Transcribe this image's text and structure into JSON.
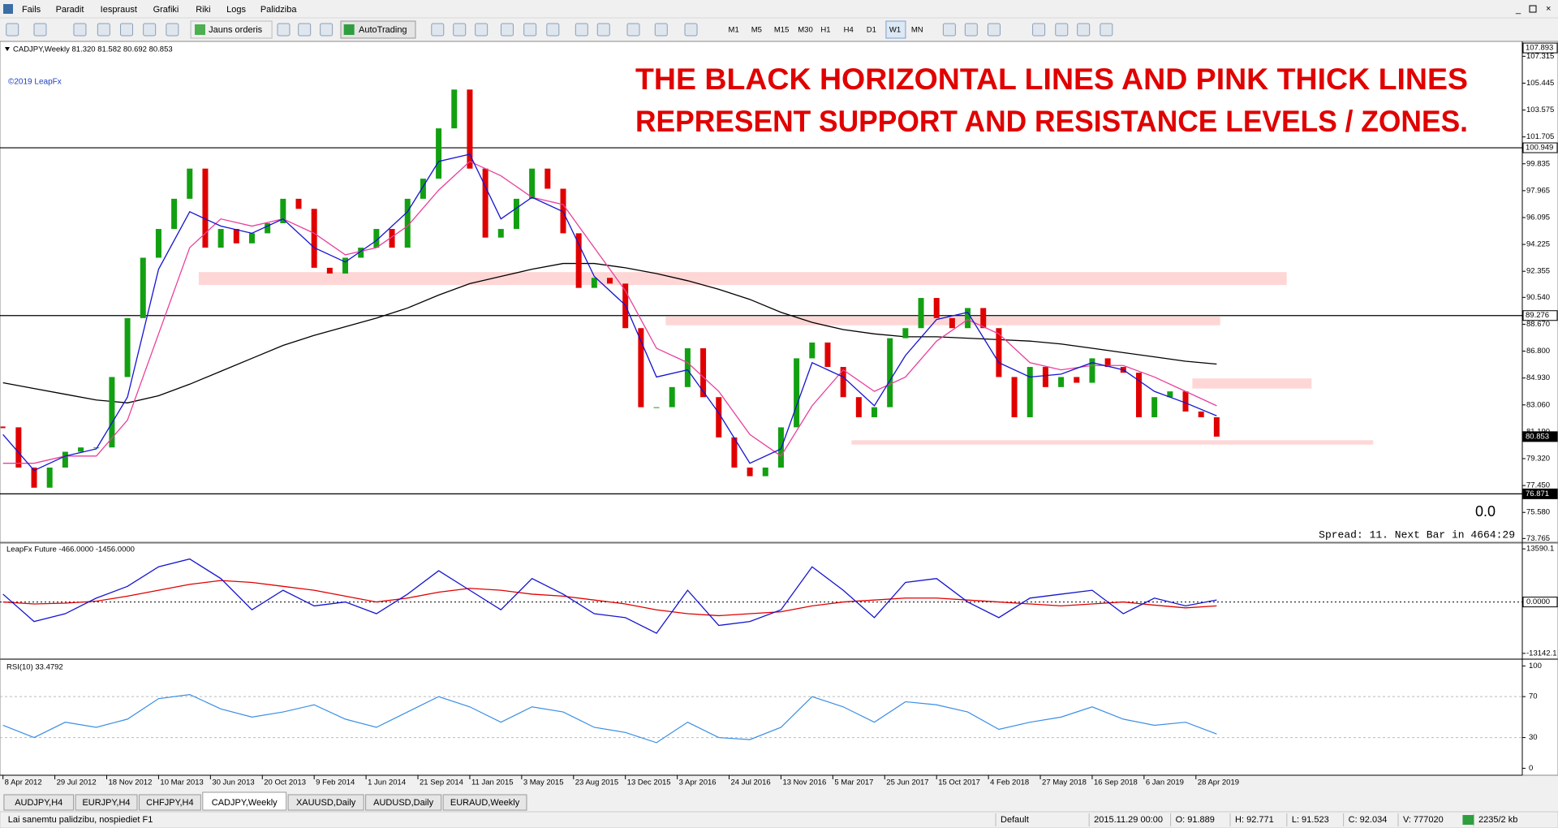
{
  "menu": [
    "Fails",
    "Paradit",
    "Iespraust",
    "Grafiki",
    "Riki",
    "Logs",
    "Palidziba"
  ],
  "toolbar": {
    "new_order": "Jauns orderis",
    "autotrading": "AutoTrading",
    "timeframes": [
      "M1",
      "M5",
      "M15",
      "M30",
      "H1",
      "H4",
      "D1",
      "W1",
      "MN"
    ]
  },
  "main_chart": {
    "header": "CADJPY,Weekly  81.320 81.582 80.692 80.853",
    "copyright": "©2019 LeapFx",
    "annotation": [
      "THE BLACK HORIZONTAL LINES AND PINK THICK LINES",
      "REPRESENT SUPPORT AND RESISTANCE LEVELS / ZONES."
    ],
    "ylim": [
      73.56,
      108.35
    ],
    "yticks": [
      107.315,
      105.445,
      103.575,
      101.705,
      99.835,
      97.965,
      96.095,
      94.225,
      92.355,
      {
        "value": 90.54,
        "label": "90.540"
      },
      {
        "value": 88.67,
        "label": "88.670"
      },
      {
        "value": 86.8,
        "label": "86.800"
      },
      {
        "value": 84.93,
        "label": "84.930"
      },
      {
        "value": 83.06,
        "label": "83.060"
      },
      {
        "value": 81.19,
        "label": "81.190"
      },
      {
        "value": 79.32,
        "label": "79.320"
      },
      {
        "value": 77.45,
        "label": "77.450"
      },
      {
        "value": 75.58,
        "label": "75.580"
      },
      73.765
    ],
    "top_label": 107.893,
    "levels": [
      100.949,
      89.276,
      76.871
    ],
    "last_price": 80.853,
    "zones": [
      [
        91.4,
        92.3
      ],
      [
        88.6,
        89.2
      ],
      [
        84.2,
        84.9
      ],
      [
        80.3,
        80.6
      ]
    ],
    "price": [
      81.5,
      78.7,
      77.3,
      78.7,
      79.8,
      80.1,
      80.1,
      85.0,
      89.1,
      93.3,
      95.3,
      97.4,
      99.5,
      94.0,
      95.3,
      94.3,
      95.0,
      95.7,
      97.4,
      96.7,
      92.6,
      92.2,
      93.3,
      94.0,
      95.3,
      94.0,
      97.4,
      98.8,
      102.3,
      105.0,
      99.5,
      94.7,
      95.3,
      97.4,
      99.5,
      98.1,
      95.0,
      91.2,
      91.9,
      91.5,
      88.4,
      82.9,
      82.9,
      84.3,
      87.0,
      83.6,
      80.8,
      78.7,
      78.1,
      78.7,
      81.5,
      86.3,
      87.4,
      85.7,
      83.6,
      82.2,
      82.9,
      87.7,
      88.4,
      90.5,
      89.1,
      88.4,
      89.8,
      88.4,
      85.0,
      82.2,
      85.7,
      84.3,
      85.0,
      84.6,
      86.3,
      85.7,
      85.3,
      82.2,
      83.6,
      84.0,
      82.6,
      82.2,
      80.853
    ],
    "ma_fast": [
      81,
      78.5,
      79.5,
      80,
      83.6,
      92.5,
      96.5,
      95.5,
      95,
      96,
      94,
      93,
      94.5,
      96.5,
      100,
      100.5,
      96,
      97.5,
      96.5,
      92,
      90,
      85,
      85.5,
      82.5,
      79,
      80,
      86,
      85,
      83,
      86.5,
      89,
      89.5,
      86,
      85,
      85.2,
      86,
      85.5,
      84,
      83.2,
      82.3
    ],
    "ma_slow": [
      79,
      79,
      79.5,
      79.5,
      82,
      88,
      94,
      96,
      95.5,
      96,
      95,
      93.5,
      94,
      95.5,
      98,
      100,
      99,
      97.5,
      97,
      94,
      91,
      87,
      86,
      84,
      81,
      79.5,
      83,
      85.5,
      84,
      85,
      87.5,
      89,
      88,
      86,
      85.5,
      85.8,
      85.8,
      85,
      84,
      83
    ],
    "ma_long": [
      84.6,
      84.2,
      83.8,
      83.4,
      83.2,
      83.7,
      84.5,
      85.4,
      86.3,
      87.2,
      87.9,
      88.5,
      89.1,
      89.8,
      90.7,
      91.5,
      92.0,
      92.5,
      92.9,
      92.9,
      92.6,
      92.2,
      91.7,
      91.1,
      90.4,
      89.5,
      88.8,
      88.3,
      88.0,
      87.8,
      87.8,
      87.7,
      87.6,
      87.5,
      87.3,
      87.0,
      86.7,
      86.4,
      86.1,
      85.9
    ],
    "counter": "0.0",
    "spread": "Spread: 11. Next Bar in 4664:29"
  },
  "indicator": {
    "label": "LeapFx Future -466.0000 -1456.0000",
    "ylim": [
      -14415,
      14863
    ],
    "yticks": [
      13590.1,
      {
        "value": 0,
        "label": "0.0000"
      },
      -13142.1
    ],
    "fast": [
      2000,
      -5000,
      -3000,
      1000,
      4000,
      9000,
      11000,
      6000,
      -2000,
      3000,
      -1000,
      0,
      -3000,
      2000,
      8000,
      3000,
      -2000,
      6000,
      2000,
      -3000,
      -4000,
      -8000,
      3000,
      -6000,
      -5000,
      -2000,
      9000,
      3000,
      -4000,
      5000,
      6000,
      0,
      -4000,
      1000,
      2000,
      3000,
      -3000,
      1000,
      -1000,
      500
    ],
    "slow": [
      0,
      -500,
      -300,
      200,
      1500,
      3000,
      4500,
      5500,
      5000,
      4000,
      3000,
      1500,
      0,
      1000,
      2500,
      3500,
      3000,
      2000,
      1500,
      500,
      -500,
      -2000,
      -3000,
      -3500,
      -3000,
      -2500,
      -1000,
      0,
      500,
      1000,
      1000,
      500,
      0,
      -500,
      -1000,
      -500,
      0,
      -800,
      -1500,
      -1000
    ]
  },
  "rsi": {
    "label": "RSI(10) 33.4792",
    "ylim": [
      -6.8,
      105.8
    ],
    "yticks": [
      100,
      70,
      30,
      0
    ],
    "levels": [
      70,
      30
    ],
    "values": [
      42,
      30,
      45,
      40,
      48,
      68,
      72,
      58,
      50,
      55,
      62,
      48,
      40,
      55,
      70,
      60,
      45,
      60,
      55,
      40,
      35,
      25,
      45,
      30,
      28,
      40,
      70,
      60,
      45,
      65,
      62,
      55,
      38,
      45,
      50,
      60,
      48,
      42,
      45,
      33.4792
    ]
  },
  "dates": [
    "8 Apr 2012",
    "29 Jul 2012",
    "18 Nov 2012",
    "10 Mar 2013",
    "30 Jun 2013",
    "20 Oct 2013",
    "9 Feb 2014",
    "1 Jun 2014",
    "21 Sep 2014",
    "11 Jan 2015",
    "3 May 2015",
    "23 Aug 2015",
    "13 Dec 2015",
    "3 Apr 2016",
    "24 Jul 2016",
    "13 Nov 2016",
    "5 Mar 2017",
    "25 Jun 2017",
    "15 Oct 2017",
    "4 Feb 2018",
    "27 May 2018",
    "16 Sep 2018",
    "6 Jan 2019",
    "28 Apr 2019"
  ],
  "tabs": [
    "AUDJPY,H4",
    "EURJPY,H4",
    "CHFJPY,H4",
    "CADJPY,Weekly",
    "XAUUSD,Daily",
    "AUDUSD,Daily",
    "EURAUD,Weekly"
  ],
  "status": {
    "help": "Lai sanemtu palidzibu, nospiediet F1",
    "profile": "Default",
    "time": "2015.11.29 00:00",
    "open": "O: 91.889",
    "high": "H: 92.771",
    "low": "L: 91.523",
    "close": "C: 92.034",
    "volume": "V: 777020",
    "traffic": "2235/2 kb"
  }
}
